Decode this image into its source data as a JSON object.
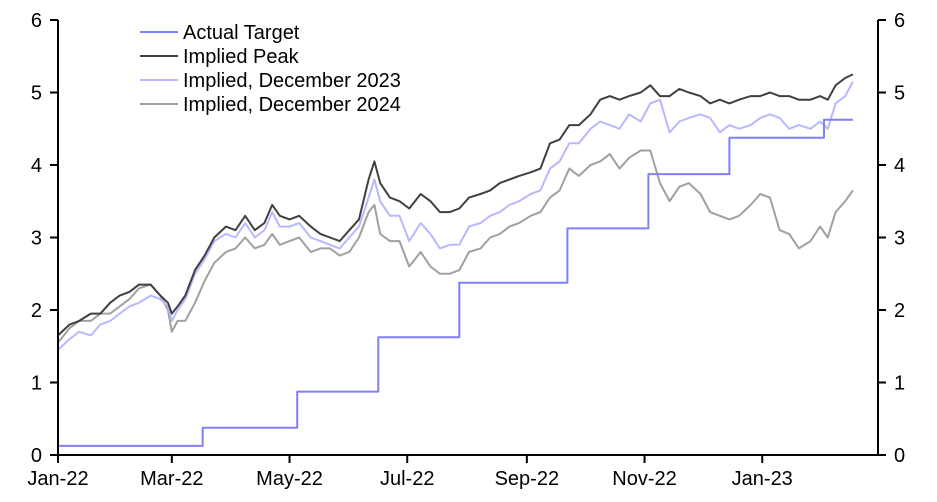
{
  "chart_data": {
    "type": "line",
    "title": "",
    "xlabel": "",
    "ylabel": "",
    "x_unit": "days since 1 Jan 2022",
    "xlim": [
      0,
      425
    ],
    "ylim": [
      0,
      6
    ],
    "yticks": [
      0,
      1,
      2,
      3,
      4,
      5,
      6
    ],
    "xticks": [
      {
        "day": 0,
        "label": "Jan-22"
      },
      {
        "day": 59,
        "label": "Mar-22"
      },
      {
        "day": 120,
        "label": "May-22"
      },
      {
        "day": 181,
        "label": "Jul-22"
      },
      {
        "day": 243,
        "label": "Sep-22"
      },
      {
        "day": 304,
        "label": "Nov-22"
      },
      {
        "day": 365,
        "label": "Jan-23"
      }
    ],
    "grid": false,
    "legend_position": "top-left",
    "x": [
      0,
      6,
      11,
      17,
      22,
      27,
      32,
      37,
      42,
      48,
      53,
      57,
      59,
      62,
      66,
      71,
      76,
      81,
      87,
      92,
      97,
      102,
      107,
      111,
      115,
      120,
      125,
      131,
      136,
      141,
      146,
      151,
      156,
      161,
      164,
      167,
      172,
      177,
      182,
      188,
      193,
      198,
      203,
      208,
      213,
      219,
      224,
      229,
      234,
      239,
      245,
      250,
      255,
      260,
      265,
      270,
      276,
      281,
      286,
      291,
      296,
      302,
      307,
      312,
      317,
      322,
      327,
      333,
      338,
      343,
      348,
      353,
      359,
      364,
      369,
      374,
      379,
      384,
      390,
      395,
      399,
      403,
      408,
      412
    ],
    "series": [
      {
        "name": "Actual Target",
        "color": "#7f7fff",
        "step": true,
        "steps": [
          [
            0,
            0.125
          ],
          [
            75,
            0.375
          ],
          [
            124,
            0.875
          ],
          [
            166,
            1.625
          ],
          [
            208,
            2.375
          ],
          [
            264,
            3.125
          ],
          [
            306,
            3.875
          ],
          [
            348,
            4.375
          ],
          [
            397,
            4.625
          ]
        ],
        "end": 412
      },
      {
        "name": "Implied Peak",
        "color": "#404040",
        "values": [
          1.65,
          1.8,
          1.85,
          1.95,
          1.95,
          2.1,
          2.2,
          2.25,
          2.35,
          2.35,
          2.2,
          2.1,
          1.95,
          2.05,
          2.2,
          2.55,
          2.75,
          3.0,
          3.15,
          3.1,
          3.3,
          3.1,
          3.2,
          3.45,
          3.3,
          3.25,
          3.3,
          3.15,
          3.05,
          3.0,
          2.95,
          3.1,
          3.25,
          3.8,
          4.05,
          3.75,
          3.55,
          3.5,
          3.4,
          3.6,
          3.5,
          3.35,
          3.35,
          3.4,
          3.55,
          3.6,
          3.65,
          3.75,
          3.8,
          3.85,
          3.9,
          3.95,
          4.3,
          4.35,
          4.55,
          4.55,
          4.7,
          4.9,
          4.95,
          4.9,
          4.95,
          5.0,
          5.1,
          4.95,
          4.95,
          5.05,
          5.0,
          4.95,
          4.85,
          4.9,
          4.85,
          4.9,
          4.95,
          4.95,
          5.0,
          4.95,
          4.95,
          4.9,
          4.9,
          4.95,
          4.9,
          5.1,
          5.2,
          5.25
        ]
      },
      {
        "name": "Implied, December 2023",
        "color": "#b8b8ff",
        "values": [
          1.45,
          1.6,
          1.7,
          1.65,
          1.8,
          1.85,
          1.95,
          2.05,
          2.1,
          2.2,
          2.15,
          2.05,
          1.85,
          2.0,
          2.15,
          2.5,
          2.7,
          2.95,
          3.05,
          3.0,
          3.2,
          3.0,
          3.1,
          3.35,
          3.15,
          3.15,
          3.2,
          3.0,
          2.95,
          2.9,
          2.85,
          3.0,
          3.15,
          3.55,
          3.8,
          3.5,
          3.3,
          3.3,
          2.95,
          3.2,
          3.05,
          2.85,
          2.9,
          2.9,
          3.15,
          3.2,
          3.3,
          3.35,
          3.45,
          3.5,
          3.6,
          3.65,
          3.95,
          4.05,
          4.3,
          4.3,
          4.5,
          4.6,
          4.55,
          4.5,
          4.7,
          4.6,
          4.85,
          4.9,
          4.45,
          4.6,
          4.65,
          4.7,
          4.65,
          4.45,
          4.55,
          4.5,
          4.55,
          4.65,
          4.7,
          4.65,
          4.5,
          4.55,
          4.5,
          4.6,
          4.5,
          4.85,
          4.95,
          5.15
        ]
      },
      {
        "name": "Implied, December 2024",
        "color": "#a0a0a0",
        "values": [
          1.55,
          1.75,
          1.85,
          1.85,
          1.95,
          1.95,
          2.05,
          2.15,
          2.3,
          2.35,
          2.2,
          2.0,
          1.7,
          1.85,
          1.85,
          2.1,
          2.4,
          2.65,
          2.8,
          2.85,
          3.0,
          2.85,
          2.9,
          3.05,
          2.9,
          2.95,
          3.0,
          2.8,
          2.85,
          2.85,
          2.75,
          2.8,
          3.0,
          3.35,
          3.45,
          3.05,
          2.95,
          2.95,
          2.6,
          2.8,
          2.6,
          2.5,
          2.5,
          2.55,
          2.8,
          2.85,
          3.0,
          3.05,
          3.15,
          3.2,
          3.3,
          3.35,
          3.55,
          3.65,
          3.95,
          3.85,
          4.0,
          4.05,
          4.15,
          3.95,
          4.1,
          4.2,
          4.2,
          3.75,
          3.5,
          3.7,
          3.75,
          3.6,
          3.35,
          3.3,
          3.25,
          3.3,
          3.45,
          3.6,
          3.55,
          3.1,
          3.05,
          2.85,
          2.95,
          3.15,
          3.0,
          3.35,
          3.5,
          3.65
        ]
      }
    ]
  }
}
